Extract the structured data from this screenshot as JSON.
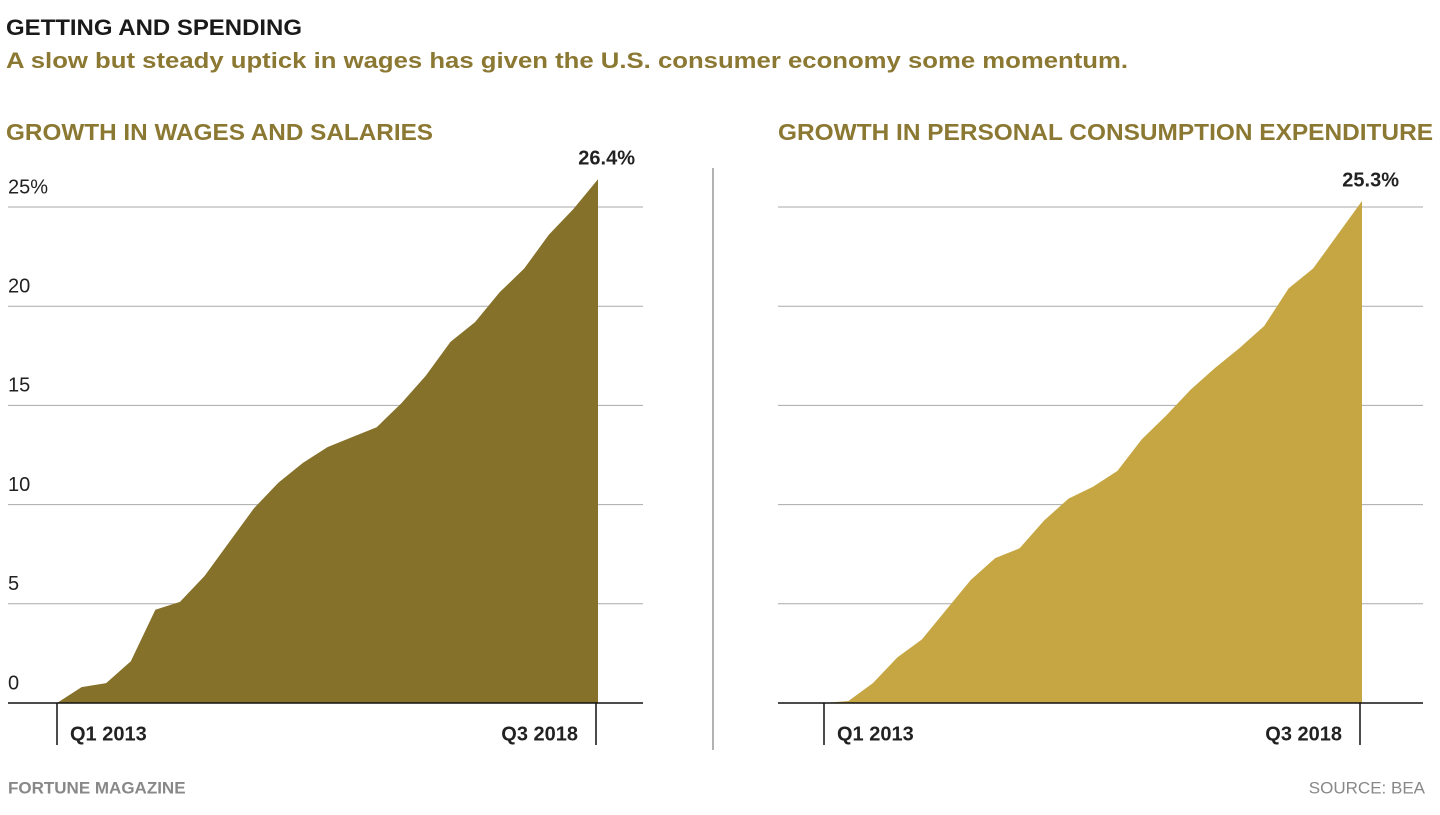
{
  "header": {
    "title": "GETTING AND SPENDING",
    "subtitle": "A slow but steady uptick in wages has given the U.S. consumer economy some momentum."
  },
  "footer": {
    "credit": "FORTUNE MAGAZINE",
    "source": "SOURCE: BEA"
  },
  "chart_data": [
    {
      "type": "area",
      "title": "GROWTH IN WAGES AND SALARIES",
      "color": "#85712a",
      "categories": [
        "Q1 2013",
        null,
        null,
        null,
        null,
        null,
        null,
        null,
        null,
        null,
        null,
        null,
        null,
        null,
        null,
        null,
        null,
        null,
        null,
        null,
        null,
        null,
        "Q3 2018"
      ],
      "values": [
        0,
        0.8,
        1.0,
        2.1,
        4.7,
        5.1,
        6.4,
        8.1,
        9.8,
        11.1,
        12.1,
        12.9,
        13.4,
        13.9,
        15.1,
        16.5,
        18.2,
        19.2,
        20.7,
        21.9,
        23.6,
        24.9,
        26.4
      ],
      "value_labels": [
        null,
        null,
        null,
        null,
        null,
        null,
        null,
        null,
        null,
        null,
        null,
        null,
        null,
        null,
        null,
        null,
        null,
        null,
        null,
        null,
        null,
        null,
        "26.4%"
      ],
      "ylim": [
        0,
        26.4
      ],
      "yticks": [
        0,
        5,
        10,
        15,
        20,
        {
          "value": 25,
          "label": "25%"
        }
      ],
      "show_ytick_labels": true,
      "grid": true
    },
    {
      "type": "area",
      "title": "GROWTH IN PERSONAL CONSUMPTION EXPENDITURE",
      "color": "#c6a642",
      "categories": [
        "Q1 2013",
        null,
        null,
        null,
        null,
        null,
        null,
        null,
        null,
        null,
        null,
        null,
        null,
        null,
        null,
        null,
        null,
        null,
        null,
        null,
        null,
        null,
        "Q3 2018"
      ],
      "values": [
        0,
        0.1,
        1.0,
        2.3,
        3.2,
        4.7,
        6.2,
        7.3,
        7.8,
        9.2,
        10.3,
        10.9,
        11.7,
        13.3,
        14.5,
        15.8,
        16.9,
        17.9,
        19.0,
        20.9,
        21.9,
        23.6,
        25.3
      ],
      "value_labels": [
        null,
        null,
        null,
        null,
        null,
        null,
        null,
        null,
        null,
        null,
        null,
        null,
        null,
        null,
        null,
        null,
        null,
        null,
        null,
        null,
        null,
        null,
        "25.3%"
      ],
      "ylim": [
        0,
        26.4
      ],
      "yticks": [
        0,
        5,
        10,
        15,
        20,
        25
      ],
      "show_ytick_labels": false,
      "grid": true
    }
  ]
}
